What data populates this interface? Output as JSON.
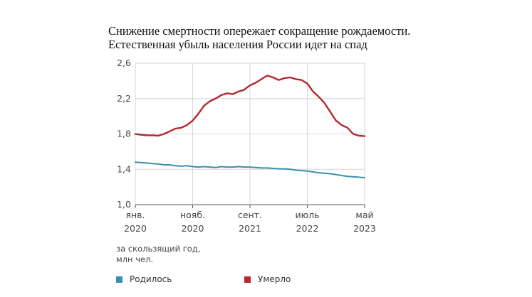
{
  "title_line1": "Снижение смертности опережает сокращение рождаемости.",
  "title_line2": "Естественная убыль населения России идет на спад",
  "units_line1": "за скользящий год,",
  "units_line2": "млн чел.",
  "colors": {
    "births": "#3a8fb0",
    "deaths": "#b5282e",
    "grid": "#d6d6d6",
    "axis": "#555555"
  },
  "chart_data": {
    "type": "line",
    "title": "Снижение смертности опережает сокращение рождаемости. Естественная убыль населения России идет на спад",
    "ylabel": "за скользящий год, млн чел.",
    "ylim": [
      1.0,
      2.6
    ],
    "yticks": [
      "1,0",
      "1,4",
      "1,8",
      "2,2",
      "2,6"
    ],
    "yticks_values": [
      1.0,
      1.4,
      1.8,
      2.2,
      2.6
    ],
    "grid": true,
    "legend_position": "bottom",
    "xticks": [
      {
        "month": "янв.",
        "year": "2020",
        "index": 0
      },
      {
        "month": "нояб.",
        "year": "2020",
        "index": 10
      },
      {
        "month": "сент.",
        "year": "2021",
        "index": 20
      },
      {
        "month": "июль",
        "year": "2022",
        "index": 30
      },
      {
        "month": "май",
        "year": "2023",
        "index": 40
      }
    ],
    "x": [
      "2020-01",
      "2020-02",
      "2020-03",
      "2020-04",
      "2020-05",
      "2020-06",
      "2020-07",
      "2020-08",
      "2020-09",
      "2020-10",
      "2020-11",
      "2020-12",
      "2021-01",
      "2021-02",
      "2021-03",
      "2021-04",
      "2021-05",
      "2021-06",
      "2021-07",
      "2021-08",
      "2021-09",
      "2021-10",
      "2021-11",
      "2021-12",
      "2022-01",
      "2022-02",
      "2022-03",
      "2022-04",
      "2022-05",
      "2022-06",
      "2022-07",
      "2022-08",
      "2022-09",
      "2022-10",
      "2022-11",
      "2022-12",
      "2023-01",
      "2023-02",
      "2023-03",
      "2023-04",
      "2023-05"
    ],
    "series": [
      {
        "name": "Родилось",
        "color": "#3a8fb0",
        "values": [
          1.48,
          1.475,
          1.47,
          1.465,
          1.46,
          1.45,
          1.45,
          1.44,
          1.435,
          1.44,
          1.43,
          1.425,
          1.43,
          1.425,
          1.42,
          1.43,
          1.425,
          1.425,
          1.43,
          1.425,
          1.425,
          1.42,
          1.415,
          1.415,
          1.41,
          1.405,
          1.405,
          1.4,
          1.39,
          1.385,
          1.38,
          1.37,
          1.36,
          1.355,
          1.35,
          1.34,
          1.33,
          1.32,
          1.315,
          1.31,
          1.305
        ]
      },
      {
        "name": "Умерло",
        "color": "#b5282e",
        "values": [
          1.8,
          1.79,
          1.785,
          1.785,
          1.78,
          1.8,
          1.83,
          1.86,
          1.87,
          1.9,
          1.95,
          2.03,
          2.12,
          2.17,
          2.2,
          2.24,
          2.26,
          2.25,
          2.28,
          2.3,
          2.35,
          2.38,
          2.42,
          2.46,
          2.44,
          2.41,
          2.43,
          2.44,
          2.42,
          2.41,
          2.37,
          2.28,
          2.22,
          2.15,
          2.05,
          1.95,
          1.9,
          1.87,
          1.8,
          1.78,
          1.775
        ]
      }
    ]
  }
}
